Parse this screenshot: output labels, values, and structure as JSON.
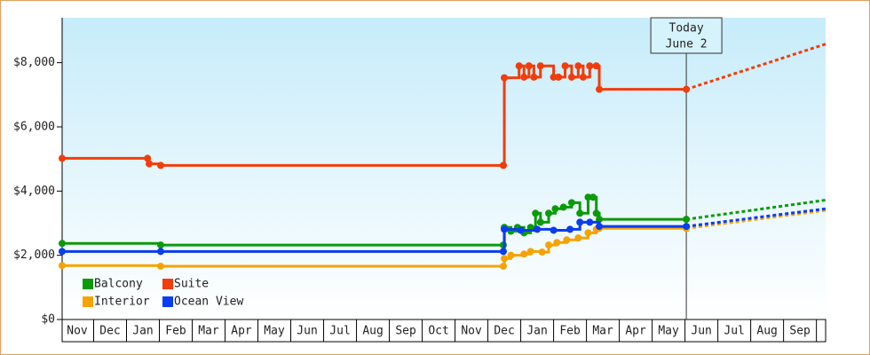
{
  "chart_data": {
    "type": "line",
    "step": true,
    "xlim": [
      0,
      23.28
    ],
    "ylim": [
      0,
      9400
    ],
    "yticks": [
      {
        "value": 0,
        "label": "$0"
      },
      {
        "value": 2000,
        "label": "$2,000"
      },
      {
        "value": 4000,
        "label": "$4,000"
      },
      {
        "value": 6000,
        "label": "$6,000"
      },
      {
        "value": 8000,
        "label": "$8,000"
      }
    ],
    "xticks": [
      {
        "value": 0.5,
        "label": "Nov"
      },
      {
        "value": 1.5,
        "label": "Dec"
      },
      {
        "value": 2.5,
        "label": "Jan"
      },
      {
        "value": 3.5,
        "label": "Feb"
      },
      {
        "value": 4.5,
        "label": "Mar"
      },
      {
        "value": 5.5,
        "label": "Apr"
      },
      {
        "value": 6.5,
        "label": "May"
      },
      {
        "value": 7.5,
        "label": "Jun"
      },
      {
        "value": 8.5,
        "label": "Jul"
      },
      {
        "value": 9.5,
        "label": "Aug"
      },
      {
        "value": 10.5,
        "label": "Sep"
      },
      {
        "value": 11.5,
        "label": "Oct"
      },
      {
        "value": 12.5,
        "label": "Nov"
      },
      {
        "value": 13.5,
        "label": "Dec"
      },
      {
        "value": 14.5,
        "label": "Jan"
      },
      {
        "value": 15.5,
        "label": "Feb"
      },
      {
        "value": 16.5,
        "label": "Mar"
      },
      {
        "value": 17.5,
        "label": "Apr"
      },
      {
        "value": 18.5,
        "label": "May"
      },
      {
        "value": 19.5,
        "label": "Jun"
      },
      {
        "value": 20.5,
        "label": "Jul"
      },
      {
        "value": 21.5,
        "label": "Aug"
      },
      {
        "value": 22.5,
        "label": "Sep"
      }
    ],
    "annotation": {
      "x": 19.04,
      "lines": [
        "Today",
        "June 2"
      ]
    },
    "series": [
      {
        "name": "Balcony",
        "color": "#0a9a0a",
        "x": [
          0.04,
          3.04,
          13.47,
          13.5,
          13.7,
          13.9,
          14.1,
          14.3,
          14.45,
          14.6,
          14.85,
          15.05,
          15.3,
          15.55,
          15.8,
          16.05,
          16.2,
          16.3,
          16.39,
          19.04
        ],
        "values": [
          2370,
          2320,
          2320,
          2870,
          2750,
          2870,
          2700,
          2870,
          3310,
          3030,
          3310,
          3450,
          3500,
          3640,
          3310,
          3810,
          3810,
          3310,
          3120,
          3120
        ],
        "forecast": {
          "x": [
            19.04,
            23.28
          ],
          "values": [
            3120,
            3720
          ]
        }
      },
      {
        "name": "Suite",
        "color": "#f23c0a",
        "x": [
          0.04,
          2.64,
          2.69,
          3.04,
          13.47,
          13.5,
          13.95,
          14.1,
          14.25,
          14.4,
          14.6,
          15.0,
          15.15,
          15.35,
          15.55,
          15.75,
          15.9,
          16.1,
          16.3,
          16.39,
          19.04
        ],
        "values": [
          5020,
          5020,
          4850,
          4800,
          4800,
          7530,
          7900,
          7550,
          7900,
          7550,
          7900,
          7550,
          7550,
          7900,
          7550,
          7900,
          7550,
          7900,
          7900,
          7170,
          7170
        ],
        "forecast": {
          "x": [
            19.04,
            23.28
          ],
          "values": [
            7170,
            8580
          ]
        }
      },
      {
        "name": "Interior",
        "color": "#f5a300",
        "x": [
          0.04,
          3.04,
          13.47,
          13.5,
          13.7,
          14.1,
          14.3,
          14.65,
          14.85,
          15.1,
          15.4,
          15.75,
          16.05,
          16.3,
          16.39,
          19.04
        ],
        "values": [
          1680,
          1660,
          1660,
          1900,
          2000,
          2040,
          2120,
          2100,
          2320,
          2400,
          2480,
          2540,
          2700,
          2810,
          2840,
          2840
        ],
        "forecast": {
          "x": [
            19.04,
            23.28
          ],
          "values": [
            2840,
            3400
          ]
        }
      },
      {
        "name": "Ocean View",
        "color": "#0a3cf0",
        "x": [
          0.04,
          3.04,
          13.47,
          13.5,
          14.0,
          14.5,
          15.0,
          15.5,
          15.8,
          16.1,
          16.39,
          19.04
        ],
        "values": [
          2120,
          2120,
          2120,
          2810,
          2780,
          2810,
          2780,
          2810,
          3030,
          3030,
          2900,
          2900
        ],
        "forecast": {
          "x": [
            19.04,
            23.28
          ],
          "values": [
            2900,
            3450
          ]
        }
      }
    ]
  }
}
